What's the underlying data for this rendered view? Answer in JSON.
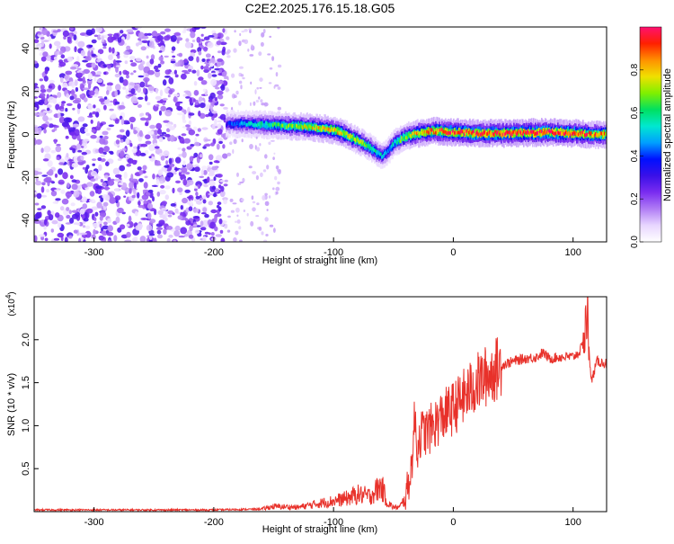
{
  "figure_title": "C2E2.2025.176.15.18.G05",
  "colors": {
    "snr_line": "#e8312a",
    "axis": "#000000",
    "colormap": [
      "#ffffff",
      "#e8d6ff",
      "#b07cf5",
      "#7a2cf0",
      "#3a10e8",
      "#0010ff",
      "#00a0ff",
      "#00e8d0",
      "#00e060",
      "#80f000",
      "#f0e000",
      "#ff9000",
      "#ff2000",
      "#ff1070"
    ]
  },
  "chart_data": [
    {
      "type": "heatmap",
      "title": "C2E2.2025.176.15.18.G05",
      "xlabel": "Height of straight line (km)",
      "ylabel": "Frequency (Hz)",
      "xlim": [
        -350,
        128
      ],
      "ylim": [
        -50,
        50
      ],
      "xticks": [
        -300,
        -200,
        -100,
        0,
        100
      ],
      "yticks": [
        -40,
        -20,
        0,
        20,
        40
      ],
      "xtick_labels": [
        "-300",
        "-200",
        "-100",
        "0",
        "100"
      ],
      "ytick_labels": [
        "-40",
        "-20",
        "0",
        "20",
        "40"
      ],
      "colorbar": {
        "label": "Normalized spectral amplitude",
        "range": [
          0,
          1
        ],
        "ticks": [
          0,
          0.2,
          0.4,
          0.6,
          0.8
        ],
        "tick_labels": [
          "0.0",
          "0.2",
          "0.4",
          "0.6",
          "0.8"
        ]
      },
      "noise_region": {
        "x": [
          -350,
          -190
        ],
        "y": [
          -50,
          50
        ],
        "mean_amplitude": 0.12
      },
      "signal_trace": [
        {
          "x": -190,
          "freq": 5,
          "amp": 0.35
        },
        {
          "x": -180,
          "freq": 5,
          "amp": 0.45
        },
        {
          "x": -160,
          "freq": 4.5,
          "amp": 0.55
        },
        {
          "x": -140,
          "freq": 4,
          "amp": 0.65
        },
        {
          "x": -120,
          "freq": 3.5,
          "amp": 0.75
        },
        {
          "x": -100,
          "freq": 2,
          "amp": 0.8
        },
        {
          "x": -90,
          "freq": 0,
          "amp": 0.75
        },
        {
          "x": -80,
          "freq": -3,
          "amp": 0.7
        },
        {
          "x": -70,
          "freq": -6,
          "amp": 0.6
        },
        {
          "x": -60,
          "freq": -10,
          "amp": 0.5
        },
        {
          "x": -55,
          "freq": -8,
          "amp": 0.45
        },
        {
          "x": -50,
          "freq": -4,
          "amp": 0.55
        },
        {
          "x": -40,
          "freq": -1,
          "amp": 0.7
        },
        {
          "x": -30,
          "freq": 0.5,
          "amp": 0.8
        },
        {
          "x": -20,
          "freq": 1.5,
          "amp": 0.85
        },
        {
          "x": -10,
          "freq": 1.5,
          "amp": 0.9
        },
        {
          "x": 0,
          "freq": 1,
          "amp": 0.9
        },
        {
          "x": 20,
          "freq": 0.5,
          "amp": 0.92
        },
        {
          "x": 40,
          "freq": 0.5,
          "amp": 0.92
        },
        {
          "x": 60,
          "freq": 0.8,
          "amp": 0.95
        },
        {
          "x": 80,
          "freq": 1,
          "amp": 0.95
        },
        {
          "x": 100,
          "freq": 0.5,
          "amp": 0.9
        },
        {
          "x": 115,
          "freq": 0,
          "amp": 0.85
        },
        {
          "x": 128,
          "freq": 0,
          "amp": 0.8
        }
      ]
    },
    {
      "type": "line",
      "xlabel": "Height of straight line (km)",
      "ylabel": "SNR (10 * v/v)",
      "y_multiplier": "(x10⁴)",
      "y_multiplier_base": "(x10",
      "y_multiplier_exp": "4",
      "y_multiplier_close": ")",
      "xlim": [
        -350,
        128
      ],
      "ylim": [
        0,
        2.5
      ],
      "xticks": [
        -300,
        -200,
        -100,
        0,
        100
      ],
      "yticks": [
        0.5,
        1.0,
        1.5,
        2.0
      ],
      "xtick_labels": [
        "-300",
        "-200",
        "-100",
        "0",
        "100"
      ],
      "ytick_labels": [
        "0.5",
        "1.0",
        "1.5",
        "2.0"
      ],
      "series": [
        {
          "x": [
            -350,
            -300,
            -250,
            -200,
            -160,
            -150,
            -130,
            -110,
            -90,
            -80,
            -70,
            -60,
            -55,
            -50,
            -45,
            -40,
            -35,
            -32,
            -30,
            -28,
            -20,
            -10,
            0,
            10,
            20,
            30,
            40,
            50,
            60,
            70,
            75,
            80,
            90,
            100,
            105,
            110,
            112,
            115,
            120,
            128
          ],
          "y": [
            0.02,
            0.02,
            0.02,
            0.02,
            0.03,
            0.06,
            0.05,
            0.1,
            0.15,
            0.2,
            0.18,
            0.3,
            0.1,
            0.05,
            0.05,
            0.15,
            0.5,
            1.1,
            0.7,
            0.9,
            0.95,
            1.1,
            1.2,
            1.35,
            1.5,
            1.6,
            1.7,
            1.75,
            1.78,
            1.8,
            1.85,
            1.78,
            1.8,
            1.8,
            1.85,
            2.0,
            2.3,
            1.5,
            1.75,
            1.72
          ]
        }
      ]
    }
  ]
}
